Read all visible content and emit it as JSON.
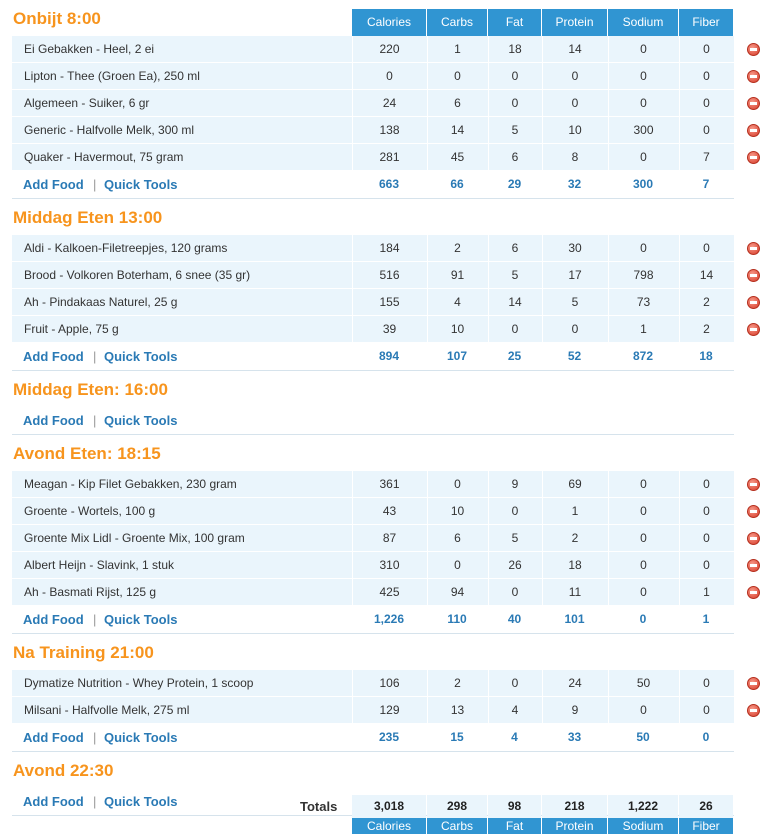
{
  "columns": [
    "Calories",
    "Carbs",
    "Fat",
    "Protein",
    "Sodium",
    "Fiber"
  ],
  "links": {
    "add_food": "Add Food",
    "sep": "|",
    "quick_tools": "Quick Tools"
  },
  "meals": [
    {
      "title": "Onbijt 8:00",
      "items": [
        {
          "name": "Ei Gebakken - Heel, 2 ei",
          "values": [
            "220",
            "1",
            "18",
            "14",
            "0",
            "0"
          ]
        },
        {
          "name": "Lipton - Thee (Groen Ea), 250 ml",
          "values": [
            "0",
            "0",
            "0",
            "0",
            "0",
            "0"
          ]
        },
        {
          "name": "Algemeen - Suiker, 6 gr",
          "values": [
            "24",
            "6",
            "0",
            "0",
            "0",
            "0"
          ]
        },
        {
          "name": "Generic - Halfvolle Melk, 300 ml",
          "values": [
            "138",
            "14",
            "5",
            "10",
            "300",
            "0"
          ]
        },
        {
          "name": "Quaker - Havermout, 75 gram",
          "values": [
            "281",
            "45",
            "6",
            "8",
            "0",
            "7"
          ]
        }
      ],
      "totals": [
        "663",
        "66",
        "29",
        "32",
        "300",
        "7"
      ]
    },
    {
      "title": "Middag Eten 13:00",
      "items": [
        {
          "name": "Aldi - Kalkoen-Filetreepjes, 120 grams",
          "values": [
            "184",
            "2",
            "6",
            "30",
            "0",
            "0"
          ]
        },
        {
          "name": "Brood - Volkoren Boterham, 6 snee (35 gr)",
          "values": [
            "516",
            "91",
            "5",
            "17",
            "798",
            "14"
          ]
        },
        {
          "name": "Ah - Pindakaas Naturel, 25 g",
          "values": [
            "155",
            "4",
            "14",
            "5",
            "73",
            "2"
          ]
        },
        {
          "name": "Fruit - Apple, 75 g",
          "values": [
            "39",
            "10",
            "0",
            "0",
            "1",
            "2"
          ]
        }
      ],
      "totals": [
        "894",
        "107",
        "25",
        "52",
        "872",
        "18"
      ]
    },
    {
      "title": "Middag Eten: 16:00",
      "items": [],
      "totals": null
    },
    {
      "title": "Avond Eten: 18:15",
      "items": [
        {
          "name": "Meagan - Kip Filet Gebakken, 230 gram",
          "values": [
            "361",
            "0",
            "9",
            "69",
            "0",
            "0"
          ]
        },
        {
          "name": "Groente - Wortels, 100 g",
          "values": [
            "43",
            "10",
            "0",
            "1",
            "0",
            "0"
          ]
        },
        {
          "name": "Groente Mix Lidl - Groente Mix, 100 gram",
          "values": [
            "87",
            "6",
            "5",
            "2",
            "0",
            "0"
          ]
        },
        {
          "name": "Albert Heijn - Slavink, 1 stuk",
          "values": [
            "310",
            "0",
            "26",
            "18",
            "0",
            "0"
          ]
        },
        {
          "name": "Ah - Basmati Rijst, 125 g",
          "values": [
            "425",
            "94",
            "0",
            "11",
            "0",
            "1"
          ]
        }
      ],
      "totals": [
        "1,226",
        "110",
        "40",
        "101",
        "0",
        "1"
      ]
    },
    {
      "title": "Na Training 21:00",
      "items": [
        {
          "name": "Dymatize Nutrition - Whey Protein, 1 scoop",
          "values": [
            "106",
            "2",
            "0",
            "24",
            "50",
            "0"
          ]
        },
        {
          "name": "Milsani - Halfvolle Melk, 275 ml",
          "values": [
            "129",
            "13",
            "4",
            "9",
            "0",
            "0"
          ]
        }
      ],
      "totals": [
        "235",
        "15",
        "4",
        "33",
        "50",
        "0"
      ]
    },
    {
      "title": "Avond 22:30",
      "items": [],
      "totals": null
    }
  ],
  "grand_totals": {
    "label": "Totals",
    "values": [
      "3,018",
      "298",
      "98",
      "218",
      "1,222",
      "26"
    ]
  },
  "colors": {
    "meal_title": "#f7941d",
    "header_bg": "#3095d2",
    "row_bg": "#eaf5fc",
    "link": "#2a7ab5",
    "delete_icon": "#d63a28"
  }
}
